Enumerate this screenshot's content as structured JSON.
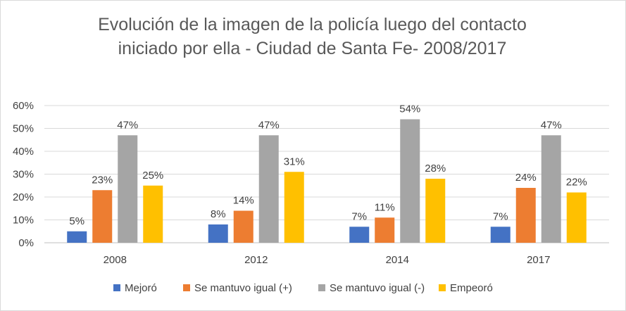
{
  "chart_data": {
    "type": "bar",
    "title_lines": [
      "Evolución de la imagen de la policía luego del contacto",
      "iniciado por ella - Ciudad de Santa Fe- 2008/2017"
    ],
    "categories": [
      "2008",
      "2012",
      "2014",
      "2017"
    ],
    "series": [
      {
        "name": "Mejoró",
        "color": "#4472c4",
        "values": [
          5,
          8,
          7,
          7
        ],
        "labels": [
          "5%",
          "8%",
          "7%",
          "7%"
        ]
      },
      {
        "name": "Se mantuvo igual (+)",
        "color": "#ed7d31",
        "values": [
          23,
          14,
          11,
          24
        ],
        "labels": [
          "23%",
          "14%",
          "11%",
          "24%"
        ]
      },
      {
        "name": "Se mantuvo igual (-)",
        "color": "#a5a5a5",
        "values": [
          47,
          47,
          54,
          47
        ],
        "labels": [
          "47%",
          "47%",
          "54%",
          "47%"
        ]
      },
      {
        "name": "Empeoró",
        "color": "#ffc000",
        "values": [
          25,
          31,
          28,
          22
        ],
        "labels": [
          "25%",
          "31%",
          "28%",
          "22%"
        ]
      }
    ],
    "ylim": [
      0,
      60
    ],
    "yticks": [
      0,
      10,
      20,
      30,
      40,
      50,
      60
    ],
    "ytick_labels": [
      "0%",
      "10%",
      "20%",
      "30%",
      "40%",
      "50%",
      "60%"
    ],
    "grid": true,
    "legend_position": "bottom"
  }
}
